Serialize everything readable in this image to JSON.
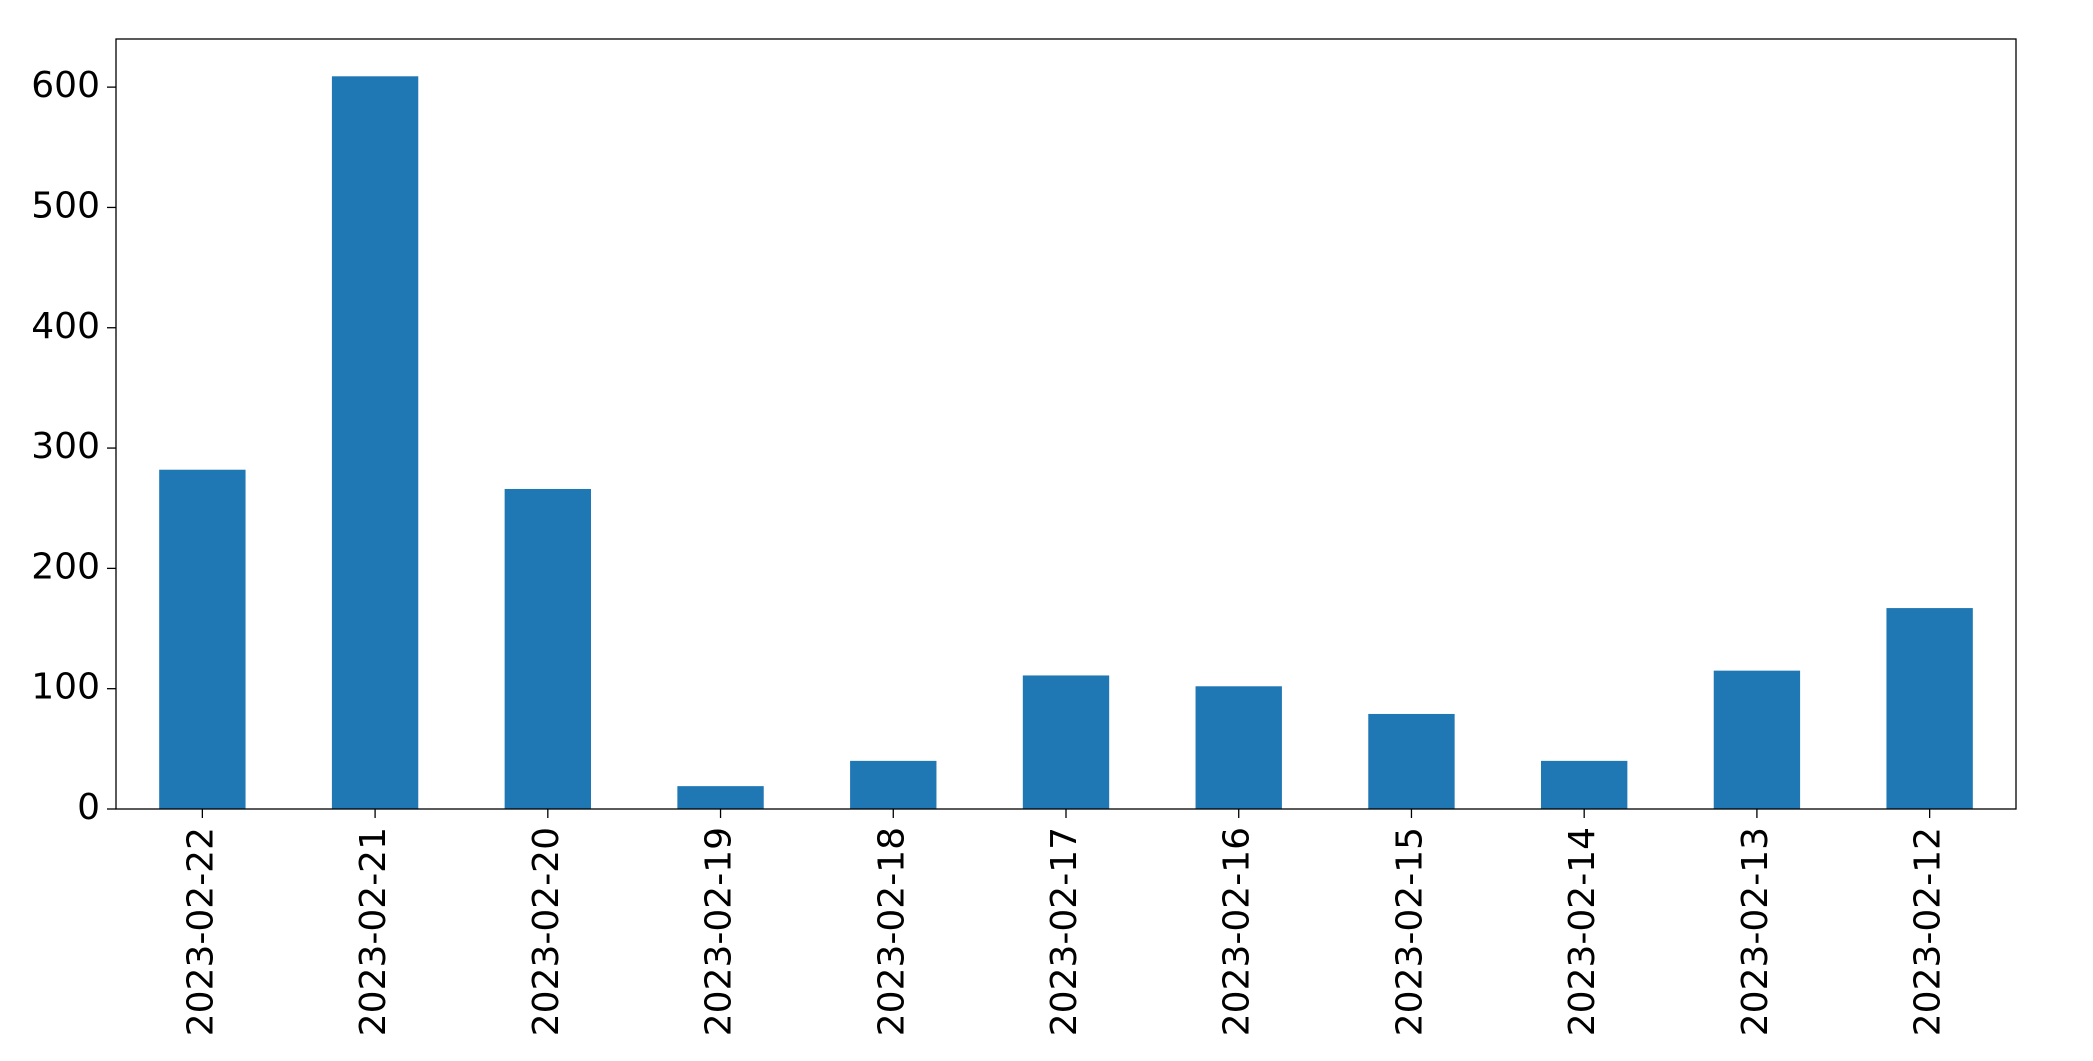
{
  "chart_data": {
    "type": "bar",
    "categories": [
      "2023-02-22",
      "2023-02-21",
      "2023-02-20",
      "2023-02-19",
      "2023-02-18",
      "2023-02-17",
      "2023-02-16",
      "2023-02-15",
      "2023-02-14",
      "2023-02-13",
      "2023-02-12"
    ],
    "values": [
      282,
      609,
      266,
      19,
      40,
      111,
      102,
      79,
      40,
      115,
      167
    ],
    "color": "#1f77b4",
    "ylim": [
      0,
      640
    ],
    "yticks": [
      0,
      100,
      200,
      300,
      400,
      500,
      600
    ],
    "grid": false
  }
}
